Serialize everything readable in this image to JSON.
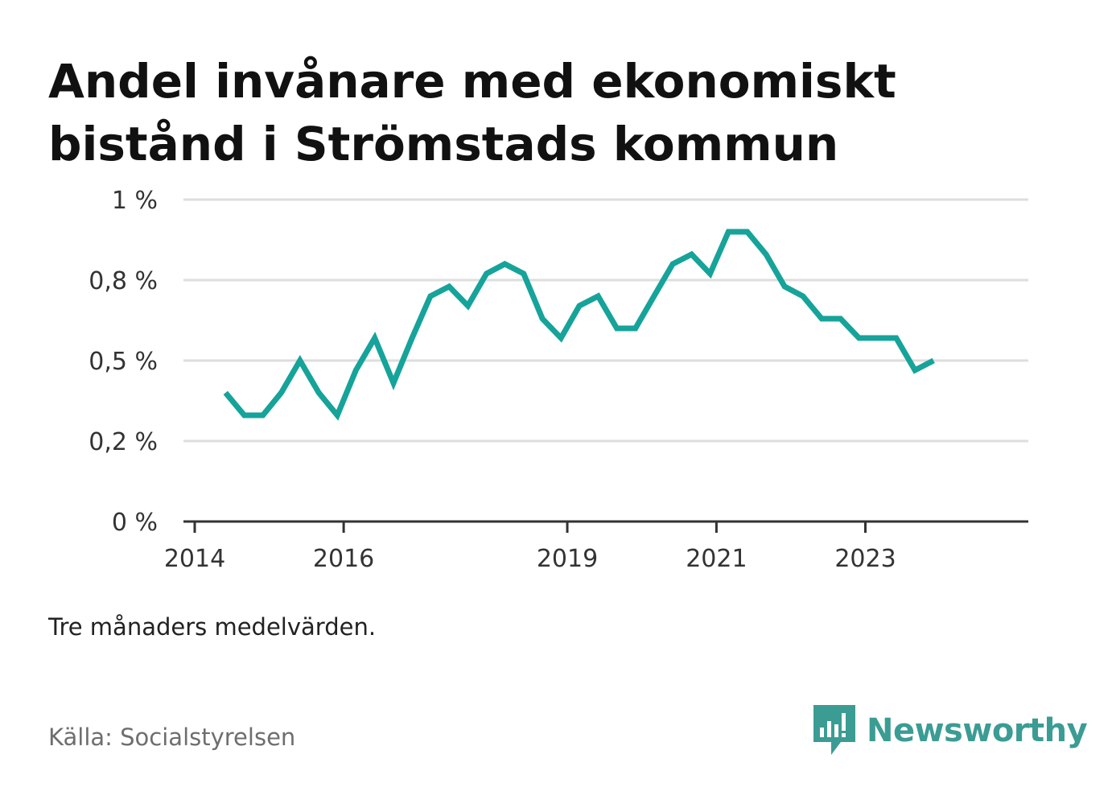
{
  "title": "Andel invånare med ekonomiskt bistånd i Strömstads kommun",
  "note": "Tre månaders medelvärden.",
  "source": "Källa: Socialstyrelsen",
  "brand": {
    "name": "Newsworthy",
    "color": "#3b9c94",
    "icon": "newsworthy-logo-icon"
  },
  "colors": {
    "line": "#16a39a",
    "grid": "#dedede",
    "axis": "#333333",
    "text": "#333333"
  },
  "chart_data": {
    "type": "line",
    "title": "Andel invånare med ekonomiskt bistånd i Strömstads kommun",
    "xlabel": "",
    "ylabel": "",
    "grid": true,
    "legend": "none",
    "yticks": [
      {
        "value": 0,
        "label": "0 %"
      },
      {
        "value": 0.25,
        "label": "0,2 %"
      },
      {
        "value": 0.5,
        "label": "0,5 %"
      },
      {
        "value": 0.75,
        "label": "0,8 %"
      },
      {
        "value": 1.0,
        "label": "1 %"
      }
    ],
    "ylim": [
      0,
      1.0
    ],
    "xlim": [
      "2014-01-01",
      "2024-12-01"
    ],
    "xticks": [
      {
        "value": "2014-01-01",
        "label": "2014"
      },
      {
        "value": "2016-01-01",
        "label": "2016"
      },
      {
        "value": "2019-01-01",
        "label": "2019"
      },
      {
        "value": "2021-01-01",
        "label": "2021"
      },
      {
        "value": "2023-01-01",
        "label": "2023"
      }
    ],
    "series": [
      {
        "name": "",
        "x": [
          "2014-06-01",
          "2014-09-01",
          "2014-12-01",
          "2015-03-01",
          "2015-06-01",
          "2015-09-01",
          "2015-12-01",
          "2016-03-01",
          "2016-06-01",
          "2016-09-01",
          "2016-12-01",
          "2017-03-01",
          "2017-06-01",
          "2017-09-01",
          "2017-12-01",
          "2018-03-01",
          "2018-06-01",
          "2018-09-01",
          "2018-12-01",
          "2019-03-01",
          "2019-06-01",
          "2019-09-01",
          "2019-12-01",
          "2020-03-01",
          "2020-06-01",
          "2020-09-01",
          "2020-12-01",
          "2021-03-01",
          "2021-06-01",
          "2021-09-01",
          "2021-12-01",
          "2022-03-01",
          "2022-06-01",
          "2022-09-01",
          "2022-12-01",
          "2023-03-01",
          "2023-06-01",
          "2023-09-01",
          "2023-12-01"
        ],
        "y": [
          0.4,
          0.33,
          0.33,
          0.4,
          0.5,
          0.4,
          0.33,
          0.47,
          0.57,
          0.43,
          0.57,
          0.7,
          0.73,
          0.67,
          0.77,
          0.8,
          0.77,
          0.63,
          0.57,
          0.67,
          0.7,
          0.6,
          0.6,
          0.7,
          0.8,
          0.83,
          0.77,
          0.9,
          0.9,
          0.83,
          0.73,
          0.7,
          0.63,
          0.63,
          0.57,
          0.57,
          0.57,
          0.47,
          0.5
        ]
      }
    ]
  }
}
